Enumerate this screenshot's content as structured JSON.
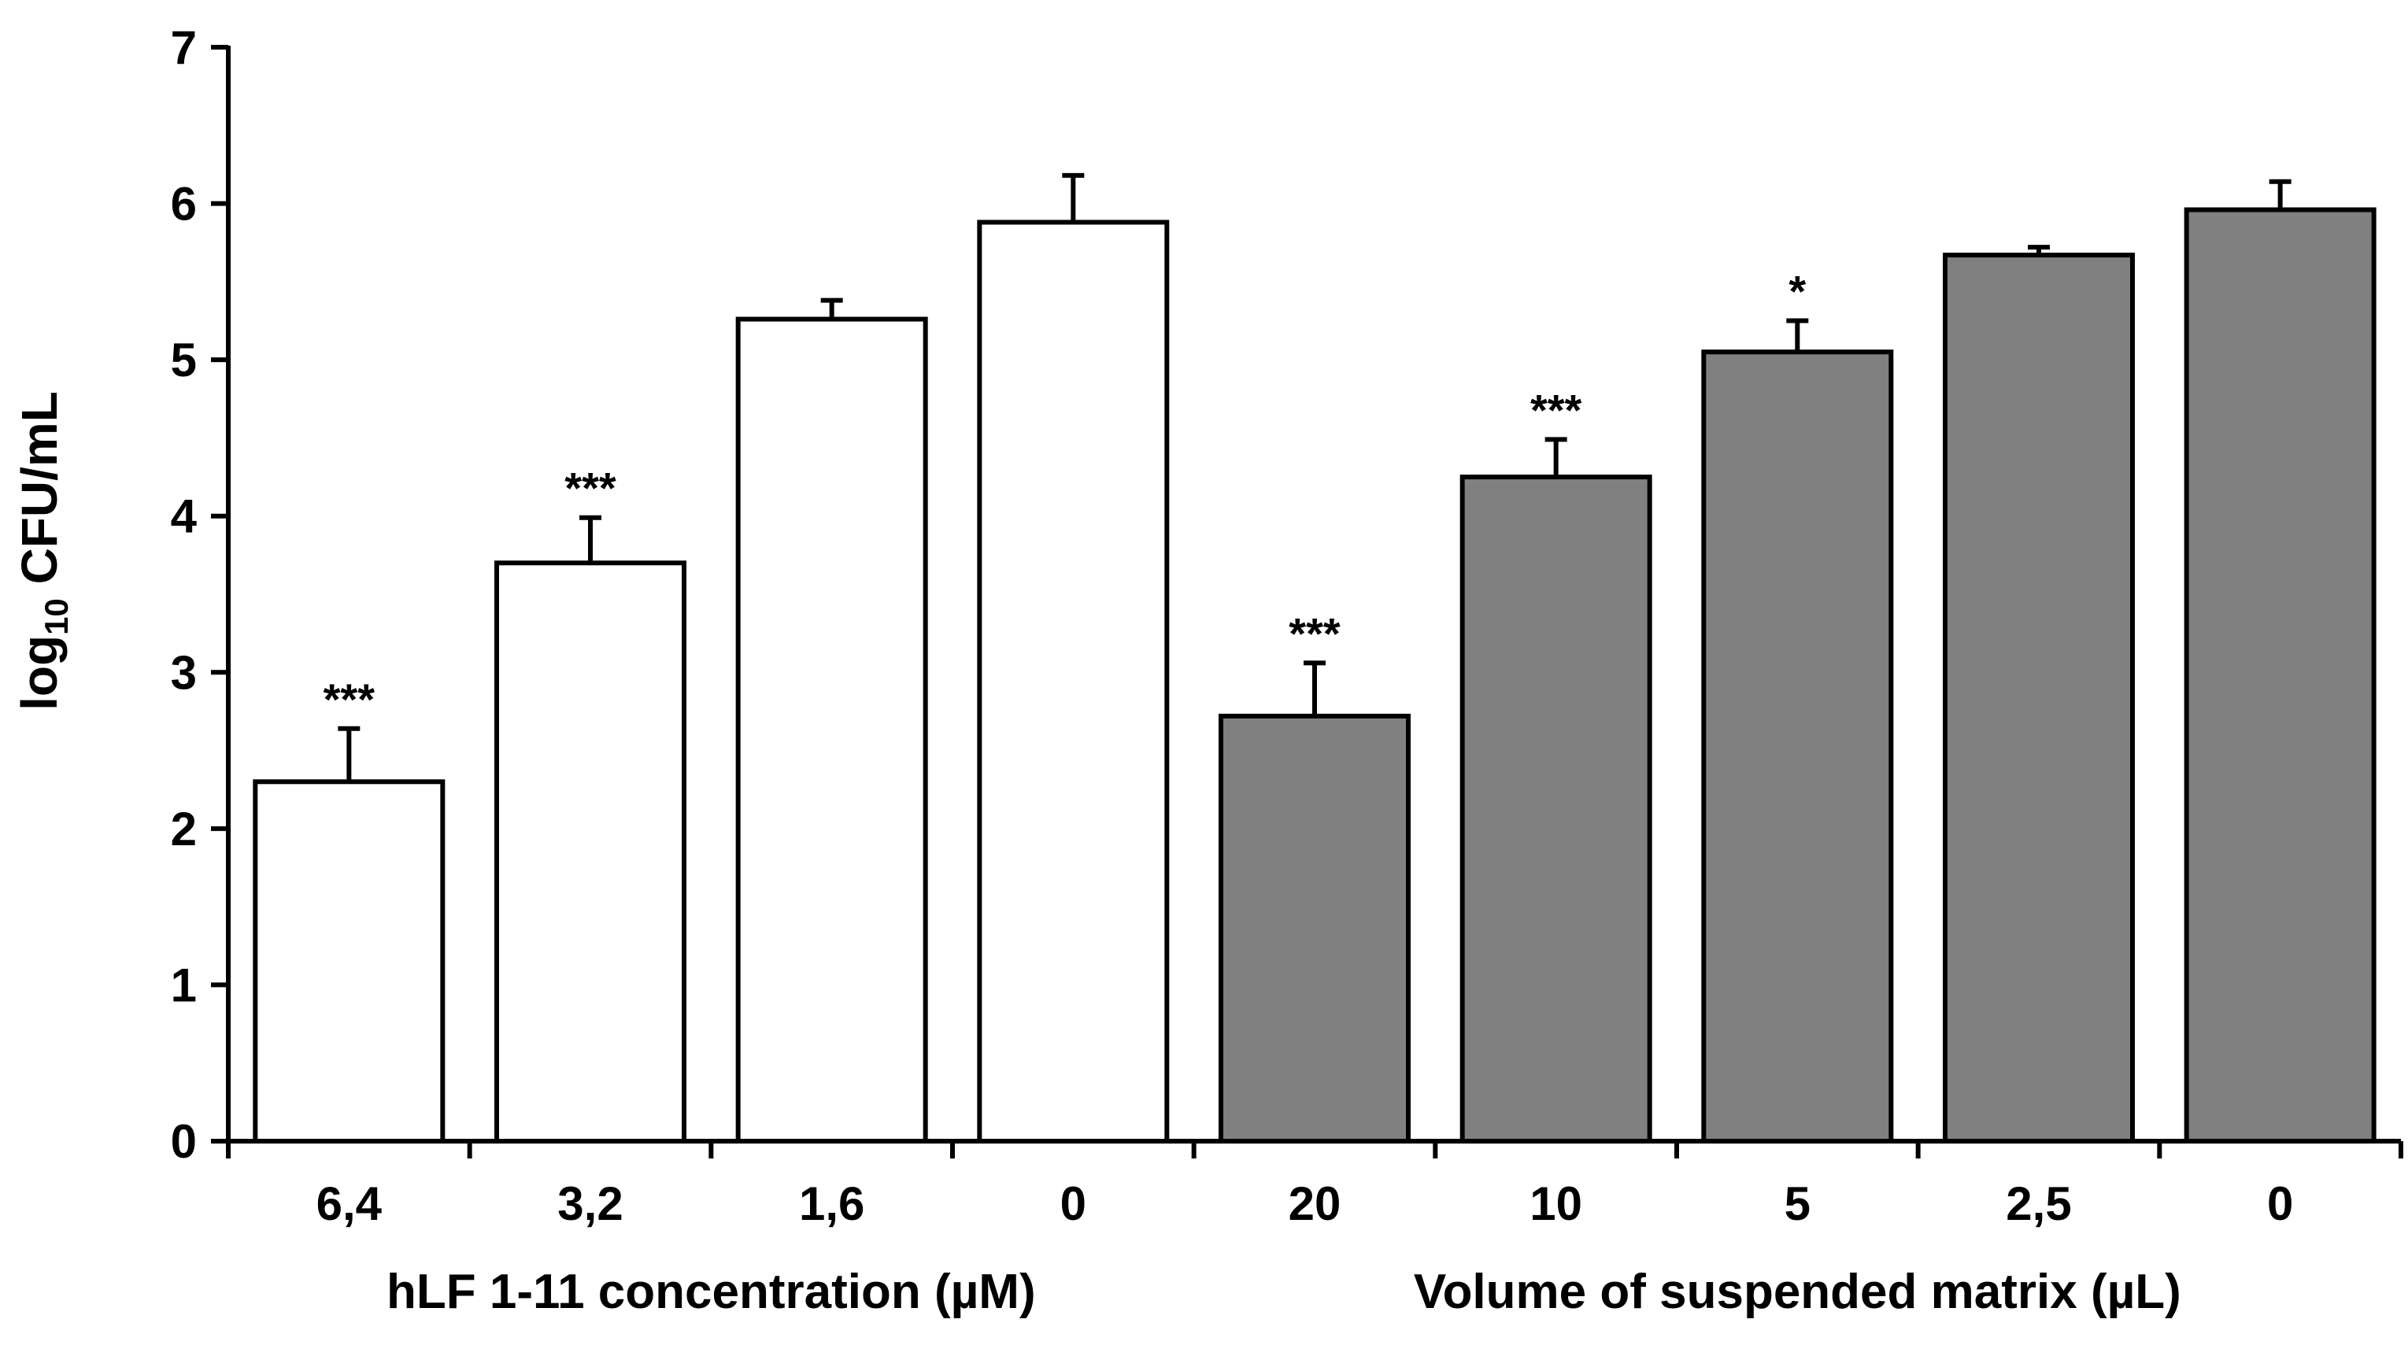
{
  "chart_data": {
    "type": "bar",
    "ylabel_main": "log",
    "ylabel_sub": "10",
    "ylabel_rest": " CFU/mL",
    "ylim": [
      0,
      7
    ],
    "yticks": [
      0,
      1,
      2,
      3,
      4,
      5,
      6,
      7
    ],
    "grid": false,
    "groups": [
      {
        "label": "hLF 1-11 concentration (µM)",
        "color": "#ffffff"
      },
      {
        "label": "Volume of suspended matrix (µL)",
        "color": "#808080"
      }
    ],
    "categories": [
      "6,4",
      "3,2",
      "1,6",
      "0",
      "20",
      "10",
      "5",
      "2,5",
      "0"
    ],
    "values": [
      2.3,
      3.7,
      5.26,
      5.88,
      2.72,
      4.25,
      5.05,
      5.67,
      5.96
    ],
    "errors": [
      0.34,
      0.29,
      0.12,
      0.3,
      0.34,
      0.24,
      0.2,
      0.05,
      0.18
    ],
    "significance": [
      "***",
      "***",
      "",
      "",
      "***",
      "***",
      "*",
      "",
      ""
    ],
    "group_index": [
      0,
      0,
      0,
      0,
      1,
      1,
      1,
      1,
      1
    ]
  }
}
